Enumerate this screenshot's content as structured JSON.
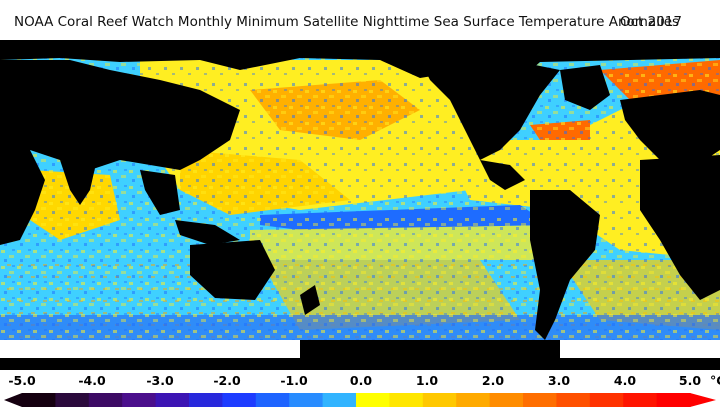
{
  "header": {
    "title": "NOAA Coral Reef Watch Monthly Minimum Satellite Nighttime Sea Surface Temperature Anomalies",
    "date": "Oct 2017"
  },
  "map": {
    "ocean_colors": {
      "yellow": "#ffee22",
      "light_blue": "#3fd0ff",
      "blue": "#2a6ff5",
      "orange": "#ffa400",
      "red": "#ff3500"
    },
    "land_color": "#000000",
    "ice_color": "#ffffff"
  },
  "legend": {
    "ticks": [
      "-5.0",
      "-4.0",
      "-3.0",
      "-2.0",
      "-1.0",
      "0.0",
      "1.0",
      "2.0",
      "3.0",
      "4.0",
      "5.0"
    ],
    "unit": "°C",
    "range": [
      -5,
      5
    ],
    "bins": [
      {
        "from": -5.0,
        "color": "#150010"
      },
      {
        "from": -4.5,
        "color": "#2b0a3c"
      },
      {
        "from": -4.0,
        "color": "#3c0a64"
      },
      {
        "from": -3.5,
        "color": "#4b0f8c"
      },
      {
        "from": -3.0,
        "color": "#3c14b4"
      },
      {
        "from": -2.5,
        "color": "#2828dc"
      },
      {
        "from": -2.0,
        "color": "#1e3cff"
      },
      {
        "from": -1.5,
        "color": "#1e64ff"
      },
      {
        "from": -1.0,
        "color": "#288cff"
      },
      {
        "from": -0.5,
        "color": "#32b4ff"
      },
      {
        "from": 0.0,
        "color": "#ffff00"
      },
      {
        "from": 0.5,
        "color": "#ffe600"
      },
      {
        "from": 1.0,
        "color": "#ffc800"
      },
      {
        "from": 1.5,
        "color": "#ffaa00"
      },
      {
        "from": 2.0,
        "color": "#ff8c00"
      },
      {
        "from": 2.5,
        "color": "#ff6e00"
      },
      {
        "from": 3.0,
        "color": "#ff5000"
      },
      {
        "from": 3.5,
        "color": "#ff3200"
      },
      {
        "from": 4.0,
        "color": "#ff1400"
      },
      {
        "from": 4.5,
        "color": "#ff0000"
      }
    ]
  }
}
